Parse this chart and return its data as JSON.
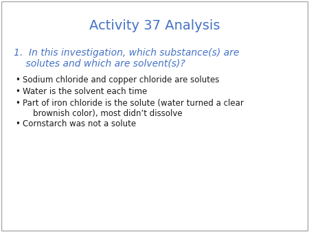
{
  "title": "Activity 37 Analysis",
  "title_color": "#4472C4",
  "title_fontsize": 14,
  "question_color": "#4472C4",
  "question_fontsize": 10,
  "question_line1": "1.  In this investigation, which substance(s) are",
  "question_line2": "    solutes and which are solvent(s)?",
  "bullet_color": "#1a1a1a",
  "bullet_fontsize": 8.5,
  "bullets": [
    "Sodium chloride and copper chloride are solutes",
    "Water is the solvent each time",
    "Part of iron chloride is the solute (water turned a clear\n    brownish color), most didn’t dissolve",
    "Cornstarch was not a solute"
  ],
  "background_color": "#ffffff",
  "border_color": "#aaaaaa"
}
